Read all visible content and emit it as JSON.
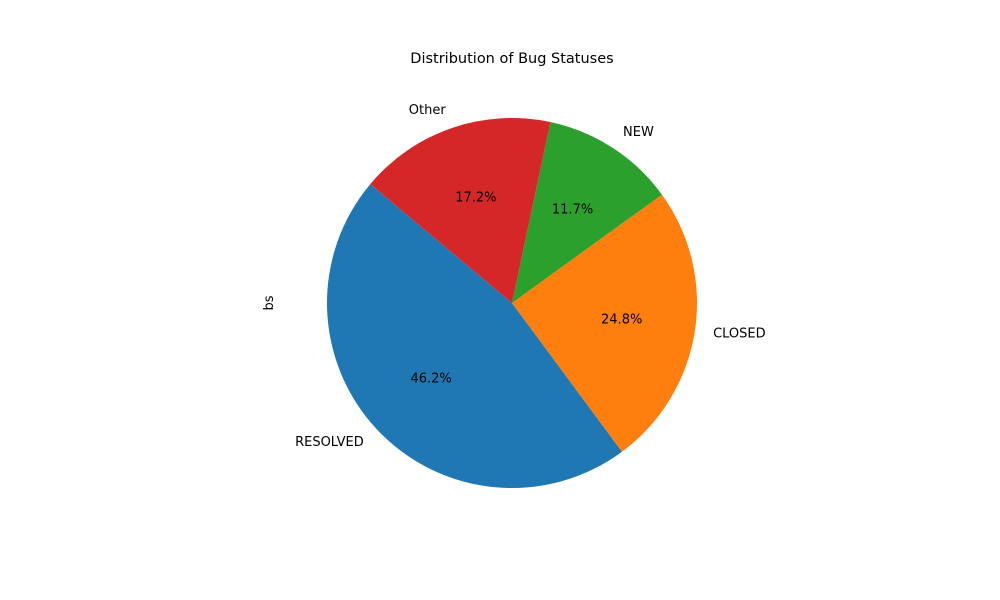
{
  "chart_data": {
    "type": "pie",
    "title": "Distribution of Bug Statuses",
    "ylabel": "bs",
    "labels": [
      "RESOLVED",
      "CLOSED",
      "NEW",
      "Other"
    ],
    "values": [
      46.2,
      24.8,
      11.7,
      17.2
    ],
    "percent_labels": [
      "46.2%",
      "24.8%",
      "11.7%",
      "17.2%"
    ],
    "colors": [
      "#1f77b4",
      "#ff7f0e",
      "#2ca02c",
      "#d62728"
    ],
    "start_angle_deg": 140,
    "direction": "counterclockwise",
    "legend": "none"
  }
}
